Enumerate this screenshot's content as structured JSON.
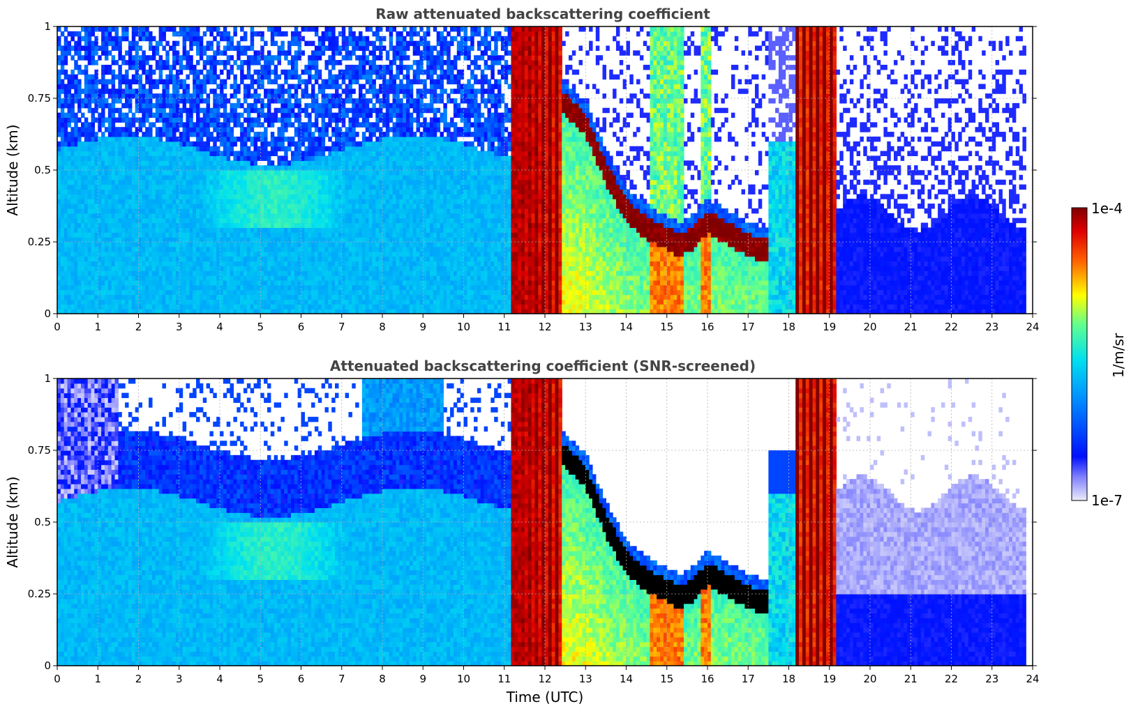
{
  "chart_data": [
    {
      "type": "heatmap",
      "title": "Raw attenuated backscattering coefficient",
      "xlabel": "",
      "ylabel": "Altitude (km)",
      "xlim": [
        0,
        24
      ],
      "ylim": [
        0,
        1
      ],
      "x_ticks": [
        "0",
        "1",
        "2",
        "3",
        "4",
        "5",
        "6",
        "7",
        "8",
        "9",
        "10",
        "11",
        "12",
        "13",
        "14",
        "15",
        "16",
        "17",
        "18",
        "19",
        "20",
        "21",
        "22",
        "23",
        "24"
      ],
      "y_ticks": [
        "0",
        "0.25",
        "0.5",
        "0.75",
        "1"
      ],
      "grid": true,
      "value_scale": "log",
      "color_range": [
        "1e-7",
        "1e-4"
      ],
      "regions": [
        {
          "feature": "boundary layer top (log10 value ≈ -6.0)",
          "x_range": [
            0,
            11.2
          ],
          "altitude_km": [
            0.5,
            0.6
          ]
        },
        {
          "feature": "strong-signal columns (log10 ≈ -4.2)",
          "x_ranges": [
            [
              11.2,
              12.4
            ],
            [
              18.2,
              19.2
            ]
          ]
        },
        {
          "feature": "descending cloud layer (log10 ≈ -4.0)",
          "points": [
            [
              12.4,
              0.7
            ],
            [
              13.0,
              0.62
            ],
            [
              13.5,
              0.45
            ],
            [
              14.0,
              0.32
            ],
            [
              14.5,
              0.26
            ],
            [
              15.3,
              0.2
            ],
            [
              16.0,
              0.28
            ],
            [
              16.5,
              0.24
            ],
            [
              17.0,
              0.2
            ],
            [
              17.4,
              0.18
            ]
          ]
        },
        {
          "feature": "clear night signal (log10 ≈ -6.6)",
          "x_range": [
            19.3,
            23.8
          ],
          "altitude_km": [
            0,
            0.35
          ]
        }
      ]
    },
    {
      "type": "heatmap",
      "title": "Attenuated backscattering coefficient (SNR-screened)",
      "xlabel": "Time (UTC)",
      "ylabel": "Altitude (km)",
      "xlim": [
        0,
        24
      ],
      "ylim": [
        0,
        1
      ],
      "x_ticks": [
        "0",
        "1",
        "2",
        "3",
        "4",
        "5",
        "6",
        "7",
        "8",
        "9",
        "10",
        "11",
        "12",
        "13",
        "14",
        "15",
        "16",
        "17",
        "18",
        "19",
        "20",
        "21",
        "22",
        "23",
        "24"
      ],
      "y_ticks": [
        "0",
        "0.25",
        "0.5",
        "0.75",
        "1"
      ],
      "grid": true,
      "value_scale": "log",
      "color_range": [
        "1e-7",
        "1e-4"
      ],
      "regions": [
        {
          "feature": "screened (no data) above aerosol layer",
          "x_range": [
            1.5,
            11.2
          ],
          "altitude_km": [
            0.7,
            1.0
          ]
        },
        {
          "feature": "strong-signal columns (log10 ≈ -4.2)",
          "x_ranges": [
            [
              11.2,
              12.4
            ],
            [
              18.2,
              19.2
            ]
          ]
        },
        {
          "feature": "saturated cloud layer (black)",
          "points": [
            [
              12.4,
              0.7
            ],
            [
              13.0,
              0.62
            ],
            [
              13.5,
              0.45
            ],
            [
              14.0,
              0.32
            ],
            [
              14.5,
              0.26
            ],
            [
              15.3,
              0.2
            ],
            [
              16.0,
              0.28
            ],
            [
              16.5,
              0.24
            ],
            [
              17.0,
              0.2
            ],
            [
              17.4,
              0.18
            ]
          ]
        },
        {
          "feature": "weak night signal (log10 ≈ -6.8 to -7)",
          "x_range": [
            19.3,
            23.8
          ],
          "altitude_km": [
            0.25,
            0.65
          ]
        }
      ]
    }
  ],
  "colorbar": {
    "label": "1/m/sr",
    "max_label": "1e-4",
    "min_label": "1e-7",
    "colormap": "jet-like with light lavender low end",
    "stops": [
      "#e8e8f8",
      "#0000ff",
      "#00bfff",
      "#2ee8c8",
      "#ffff00",
      "#ff4000",
      "#8b0000"
    ]
  }
}
